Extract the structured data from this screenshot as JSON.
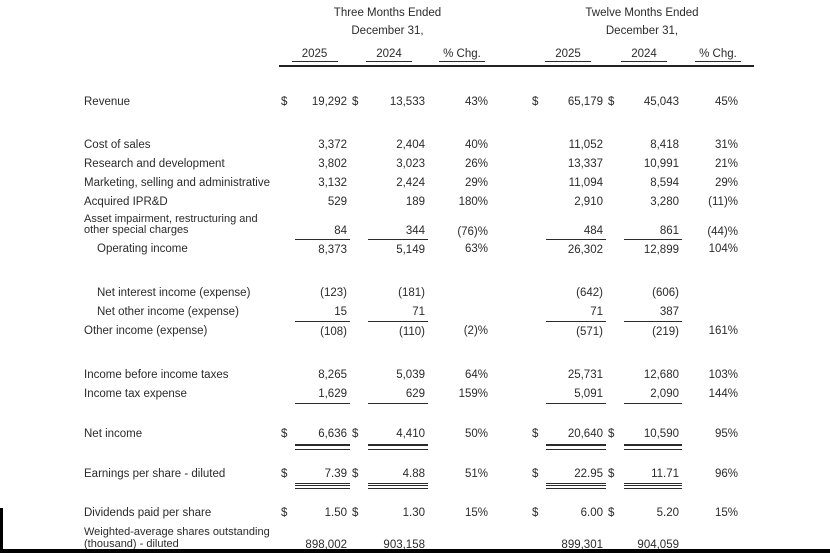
{
  "table": {
    "header": {
      "group1": {
        "line1": "Three Months Ended",
        "line2": "December 31,",
        "col1": "2025",
        "col2": "2024",
        "col3": "% Chg."
      },
      "group2": {
        "line1": "Twelve Months Ended",
        "line2": "December 31,",
        "col1": "2025",
        "col2": "2024",
        "col3": "% Chg."
      }
    },
    "rows": [
      {
        "label": "Revenue",
        "indent": false,
        "rule": "none",
        "spacer": 26,
        "cells": [
          "$",
          "19,292",
          "$",
          "13,533",
          "43%",
          "$",
          "65,179",
          "$",
          "45,043",
          "45%"
        ]
      },
      {
        "label": "Cost of sales",
        "indent": false,
        "rule": "none",
        "spacer": 24,
        "cells": [
          "",
          "3,372",
          "",
          "2,404",
          "40%",
          "",
          "11,052",
          "",
          "8,418",
          "31%"
        ]
      },
      {
        "label": "Research and development",
        "indent": false,
        "rule": "none",
        "spacer": 0,
        "cells": [
          "",
          "3,802",
          "",
          "3,023",
          "26%",
          "",
          "13,337",
          "",
          "10,991",
          "21%"
        ]
      },
      {
        "label": "Marketing, selling and administrative",
        "indent": false,
        "rule": "none",
        "spacer": 0,
        "cells": [
          "",
          "3,132",
          "",
          "2,424",
          "29%",
          "",
          "11,094",
          "",
          "8,594",
          "29%"
        ]
      },
      {
        "label": "Acquired IPR&D",
        "indent": false,
        "rule": "none",
        "spacer": 0,
        "cells": [
          "",
          "529",
          "",
          "189",
          "180%",
          "",
          "2,910",
          "",
          "3,280",
          "(11)%"
        ]
      },
      {
        "label": "Asset impairment, restructuring and",
        "label2": "other special charges",
        "indent": false,
        "rule": "single",
        "spacer": 0,
        "cells": [
          "",
          "84",
          "",
          "344",
          "(76)%",
          "",
          "484",
          "",
          "861",
          "(44)%"
        ]
      },
      {
        "label": "Operating income",
        "indent": true,
        "rule": "none",
        "spacer": 0,
        "cells": [
          "",
          "8,373",
          "",
          "5,149",
          "63%",
          "",
          "26,302",
          "",
          "12,899",
          "104%"
        ]
      },
      {
        "label": "Net interest income (expense)",
        "indent": true,
        "rule": "none",
        "spacer": 24,
        "cells": [
          "",
          "(123)",
          "",
          "(181)",
          "",
          "",
          "(642)",
          "",
          "(606)",
          ""
        ]
      },
      {
        "label": "Net other income (expense)",
        "indent": true,
        "rule": "single",
        "spacer": 0,
        "cells": [
          "",
          "15",
          "",
          "71",
          "",
          "",
          "71",
          "",
          "387",
          ""
        ]
      },
      {
        "label": "Other income (expense)",
        "indent": false,
        "rule": "none",
        "spacer": 0,
        "cells": [
          "",
          "(108)",
          "",
          "(110)",
          "(2)%",
          "",
          "(571)",
          "",
          "(219)",
          "161%"
        ]
      },
      {
        "label": "Income before income taxes",
        "indent": false,
        "rule": "none",
        "spacer": 24,
        "cells": [
          "",
          "8,265",
          "",
          "5,039",
          "64%",
          "",
          "25,731",
          "",
          "12,680",
          "103%"
        ]
      },
      {
        "label": "Income tax expense",
        "indent": false,
        "rule": "single",
        "spacer": 0,
        "cells": [
          "",
          "1,629",
          "",
          "629",
          "159%",
          "",
          "5,091",
          "",
          "2,090",
          "144%"
        ]
      },
      {
        "label": "Net income",
        "indent": false,
        "rule": "double",
        "spacer": 21,
        "cells": [
          "$",
          "6,636",
          "$",
          "4,410",
          "50%",
          "$",
          "20,640",
          "$",
          "10,590",
          "95%"
        ]
      },
      {
        "label": "Earnings per share - diluted",
        "indent": false,
        "rule": "double",
        "spacer": 20,
        "cells": [
          "$",
          "7.39",
          "$",
          "4.88",
          "51%",
          "$",
          "22.95",
          "$",
          "11.71",
          "96%"
        ]
      },
      {
        "label": "Dividends paid per share",
        "indent": false,
        "rule": "none",
        "spacer": 20,
        "cells": [
          "$",
          "1.50",
          "$",
          "1.30",
          "15%",
          "$",
          "6.00",
          "$",
          "5.20",
          "15%"
        ]
      },
      {
        "label": "Weighted-average shares outstanding",
        "label2": "(thousand) - diluted",
        "indent": false,
        "rule": "none",
        "spacer": 2,
        "cells": [
          "",
          "898,002",
          "",
          "903,158",
          "",
          "",
          "899,301",
          "",
          "904,059",
          ""
        ]
      }
    ]
  }
}
